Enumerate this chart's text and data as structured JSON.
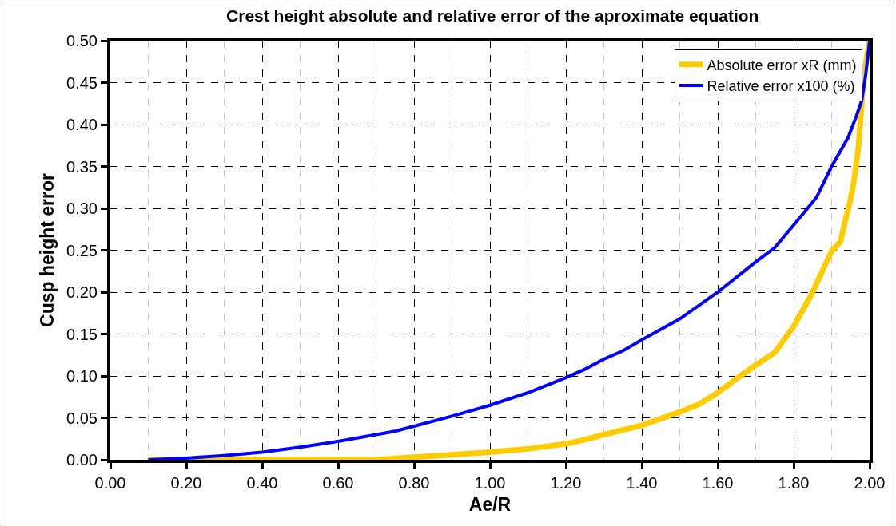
{
  "chart_data": {
    "type": "line",
    "title": "Crest height absolute and relative error of the aproximate equation",
    "xlabel": "Ae/R",
    "ylabel": "Cusp height error",
    "xlim": [
      0,
      2
    ],
    "xticks": [
      {
        "value": 0,
        "label": "0.00"
      },
      {
        "value": 0.2,
        "label": "0.20"
      },
      {
        "value": 0.4,
        "label": "0.40"
      },
      {
        "value": 0.6,
        "label": "0.60"
      },
      {
        "value": 0.8,
        "label": "0.80"
      },
      {
        "value": 1,
        "label": "1.00"
      },
      {
        "value": 1.2,
        "label": "1.20"
      },
      {
        "value": 1.4,
        "label": "1.40"
      },
      {
        "value": 1.6,
        "label": "1.60"
      },
      {
        "value": 1.8,
        "label": "1.80"
      },
      {
        "value": 2,
        "label": "2.00"
      }
    ],
    "ylim": [
      0,
      0.5
    ],
    "yticks": [
      {
        "value": 0,
        "label": "0.00"
      },
      {
        "value": 0.05,
        "label": "0.05"
      },
      {
        "value": 0.1,
        "label": "0.10"
      },
      {
        "value": 0.15,
        "label": "0.15"
      },
      {
        "value": 0.2,
        "label": "0.20"
      },
      {
        "value": 0.25,
        "label": "0.25"
      },
      {
        "value": 0.3,
        "label": "0.30"
      },
      {
        "value": 0.35,
        "label": "0.35"
      },
      {
        "value": 0.4,
        "label": "0.40"
      },
      {
        "value": 0.45,
        "label": "0.45"
      },
      {
        "value": 0.5,
        "label": "0.50"
      }
    ],
    "grid": true,
    "legend": "top right",
    "marker": "none",
    "line_style": "solid",
    "series": [
      {
        "name": "Absolute error xR (mm)",
        "color": "#ffcc00",
        "x": [
          0.1,
          0.3,
          0.5,
          0.7,
          0.8,
          0.9,
          1.0,
          1.1,
          1.2,
          1.25,
          1.3,
          1.4,
          1.5,
          1.55,
          1.6,
          1.65,
          1.7,
          1.75,
          1.8,
          1.85,
          1.9,
          1.923,
          1.937,
          1.948,
          1.958,
          1.97,
          1.985,
          2.0
        ],
        "values": [
          0,
          0,
          0,
          0,
          0.003,
          0.006,
          0.009,
          0.013,
          0.019,
          0.024,
          0.03,
          0.041,
          0.057,
          0.066,
          0.08,
          0.097,
          0.113,
          0.128,
          0.159,
          0.2,
          0.249,
          0.26,
          0.287,
          0.307,
          0.33,
          0.37,
          0.46,
          0.5
        ]
      },
      {
        "name": "Relative error x100 (%)",
        "color": "#0000ff",
        "x": [
          0.1,
          0.2,
          0.3,
          0.4,
          0.5,
          0.6,
          0.7,
          0.75,
          0.8,
          0.9,
          1.0,
          1.1,
          1.2,
          1.25,
          1.3,
          1.35,
          1.4,
          1.5,
          1.6,
          1.7,
          1.75,
          1.8,
          1.86,
          1.9,
          1.943,
          1.965,
          1.979,
          1.99,
          2.0
        ],
        "values": [
          0,
          0.002,
          0.005,
          0.009,
          0.015,
          0.022,
          0.03,
          0.034,
          0.04,
          0.052,
          0.065,
          0.08,
          0.098,
          0.108,
          0.12,
          0.13,
          0.143,
          0.168,
          0.2,
          0.236,
          0.253,
          0.28,
          0.313,
          0.35,
          0.384,
          0.41,
          0.428,
          0.46,
          0.5
        ]
      }
    ]
  }
}
